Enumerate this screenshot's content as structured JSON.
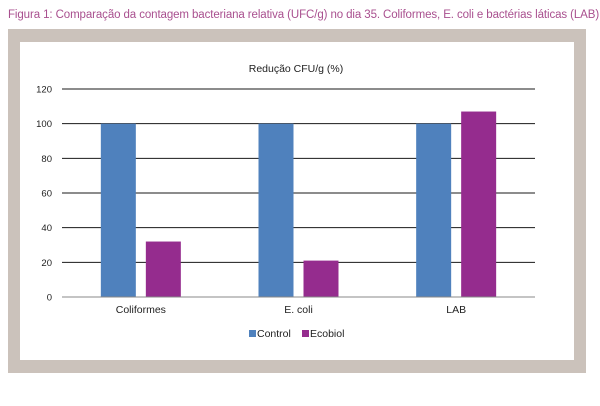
{
  "caption": "Figura 1: Comparação da contagem bacteriana relativa (UFC/g) no dia 35. Coliformes, E. coli e bactérias láticas (LAB).",
  "colors": {
    "control": "#4f81bd",
    "ecobiol": "#952c8e",
    "caption": "#a9508f",
    "frame": "#cbc2bb"
  },
  "chart_data": {
    "type": "bar",
    "title": "Redução CFU/g (%)",
    "xlabel": "",
    "ylabel": "",
    "categories": [
      "Coliformes",
      "E. coli",
      "LAB"
    ],
    "series": [
      {
        "name": "Control",
        "values": [
          100,
          100,
          100
        ]
      },
      {
        "name": "Ecobiol",
        "values": [
          32,
          21,
          107
        ]
      }
    ],
    "ylim": [
      0,
      120
    ],
    "yticks": [
      0,
      20,
      40,
      60,
      80,
      100,
      120
    ],
    "grid": true,
    "legend": "bottom"
  }
}
